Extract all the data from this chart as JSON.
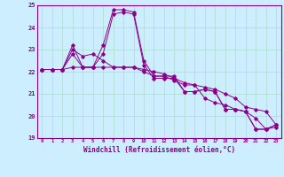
{
  "xlabel": "Windchill (Refroidissement éolien,°C)",
  "x_values": [
    0,
    1,
    2,
    3,
    4,
    5,
    6,
    7,
    8,
    9,
    10,
    11,
    12,
    13,
    14,
    15,
    16,
    17,
    18,
    19,
    20,
    21,
    22,
    23
  ],
  "series": [
    [
      22.1,
      22.1,
      22.1,
      23.2,
      22.2,
      22.2,
      23.2,
      24.8,
      24.8,
      24.7,
      22.5,
      21.8,
      21.8,
      21.8,
      21.1,
      21.1,
      21.2,
      21.1,
      20.3,
      20.3,
      20.2,
      19.4,
      19.4,
      19.6
    ],
    [
      22.1,
      22.1,
      22.1,
      22.8,
      22.2,
      22.2,
      22.8,
      24.6,
      24.7,
      24.6,
      22.3,
      21.7,
      21.7,
      21.7,
      21.1,
      21.1,
      21.2,
      21.1,
      20.3,
      20.3,
      20.2,
      19.4,
      19.4,
      19.6
    ],
    [
      22.1,
      22.1,
      22.1,
      23.0,
      22.7,
      22.8,
      22.5,
      22.2,
      22.2,
      22.2,
      22.0,
      21.8,
      21.8,
      21.6,
      21.4,
      21.4,
      20.8,
      20.6,
      20.5,
      20.3,
      20.2,
      19.9,
      19.4,
      19.5
    ],
    [
      22.1,
      22.1,
      22.1,
      22.2,
      22.2,
      22.2,
      22.2,
      22.2,
      22.2,
      22.2,
      22.1,
      22.0,
      21.9,
      21.7,
      21.5,
      21.4,
      21.3,
      21.2,
      21.0,
      20.8,
      20.4,
      20.3,
      20.2,
      19.6
    ]
  ],
  "line_color": "#8b008b",
  "bg_color": "#cceeff",
  "grid_color": "#aaddcc",
  "ylim": [
    19.0,
    25.0
  ],
  "yticks": [
    19,
    20,
    21,
    22,
    23,
    24,
    25
  ],
  "xlim": [
    -0.5,
    23.5
  ],
  "marker": "D",
  "markersize": 1.8,
  "linewidth": 0.7
}
